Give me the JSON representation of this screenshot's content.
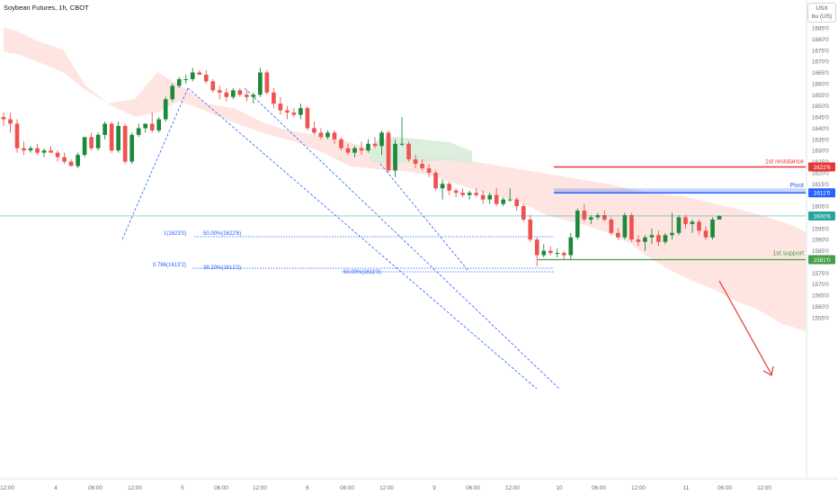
{
  "header": {
    "title": "Soybean Futures, 1h, CBOT",
    "currency_line1": "USX",
    "currency_line2": "bu (US)"
  },
  "colors": {
    "up": "#26a69a",
    "up_dark": "#1b8a3b",
    "down": "#ef5350",
    "cloud_bear": "#fddcd8",
    "cloud_bull": "#d8ecd9",
    "fib": "#2962ff",
    "resistance": "#e53935",
    "pivot": "#2962ff",
    "support": "#43a047",
    "current": "#26a69a"
  },
  "chart_data": {
    "type": "candlestick",
    "y_axis": {
      "range": [
        15520,
        16880
      ],
      "tick_labels": [
        "1685'0",
        "1680'0",
        "1675'0",
        "1670'0",
        "1665'0",
        "1660'0",
        "1655'0",
        "1650'0",
        "1645'0",
        "1640'0",
        "1635'0",
        "1630'0",
        "1625'0",
        "1620'0",
        "1615'0",
        "1610'0",
        "1605'0",
        "1600'0",
        "1595'0",
        "1590'0",
        "1585'0",
        "1580'0",
        "1575'0",
        "1570'0",
        "1565'0",
        "1560'0",
        "1555'0"
      ]
    },
    "x_axis": {
      "tick_labels": [
        "12:00",
        "4",
        "06:00",
        "12:00",
        "5",
        "06:00",
        "12:00",
        "6",
        "06:00",
        "12:00",
        "9",
        "06:00",
        "12:00",
        "10",
        "06:00",
        "12:00",
        "11",
        "06:00",
        "12:00"
      ]
    },
    "price_labels": {
      "resistance": "1622'6",
      "pivot": "1611'0",
      "current": "1600'6",
      "support": "1581'0"
    },
    "price_levels": {
      "resistance": 16226,
      "pivot_top": 16130,
      "pivot": 16110,
      "current": 16006,
      "support": 15810
    },
    "annotations": {
      "resistance": "1st resistance",
      "pivot": "Pivot",
      "support": "1st support"
    },
    "fib_labels": {
      "top_left": "1(1623'0)",
      "top_mid": "50.00%(1622'6)",
      "mid_left": "0.786(1613'2)",
      "mid_mid": "38.20%(1612'2)",
      "mid_right": "50.00%(1611'0)"
    },
    "candles": [
      [
        16450,
        16470,
        16410,
        16440
      ],
      [
        16440,
        16470,
        16380,
        16420
      ],
      [
        16420,
        16440,
        16290,
        16310
      ],
      [
        16310,
        16340,
        16280,
        16300
      ],
      [
        16300,
        16320,
        16290,
        16310
      ],
      [
        16310,
        16330,
        16280,
        16290
      ],
      [
        16290,
        16310,
        16270,
        16300
      ],
      [
        16300,
        16320,
        16290,
        16290
      ],
      [
        16290,
        16300,
        16250,
        16270
      ],
      [
        16270,
        16290,
        16240,
        16250
      ],
      [
        16250,
        16260,
        16230,
        16230
      ],
      [
        16230,
        16290,
        16220,
        16280
      ],
      [
        16280,
        16360,
        16270,
        16360
      ],
      [
        16360,
        16380,
        16300,
        16310
      ],
      [
        16310,
        16380,
        16300,
        16370
      ],
      [
        16370,
        16430,
        16350,
        16420
      ],
      [
        16420,
        16430,
        16290,
        16300
      ],
      [
        16300,
        16430,
        16290,
        16410
      ],
      [
        16410,
        16420,
        16240,
        16250
      ],
      [
        16250,
        16380,
        16240,
        16370
      ],
      [
        16370,
        16420,
        16360,
        16400
      ],
      [
        16400,
        16420,
        16380,
        16420
      ],
      [
        16420,
        16470,
        16380,
        16390
      ],
      [
        16390,
        16450,
        16380,
        16440
      ],
      [
        16440,
        16540,
        16430,
        16530
      ],
      [
        16530,
        16600,
        16520,
        16590
      ],
      [
        16590,
        16630,
        16580,
        16620
      ],
      [
        16620,
        16640,
        16600,
        16620
      ],
      [
        16620,
        16670,
        16610,
        16650
      ],
      [
        16650,
        16660,
        16640,
        16640
      ],
      [
        16640,
        16660,
        16600,
        16610
      ],
      [
        16610,
        16620,
        16560,
        16570
      ],
      [
        16570,
        16590,
        16530,
        16560
      ],
      [
        16560,
        16580,
        16520,
        16540
      ],
      [
        16540,
        16580,
        16530,
        16570
      ],
      [
        16570,
        16580,
        16540,
        16550
      ],
      [
        16550,
        16570,
        16520,
        16540
      ],
      [
        16540,
        16560,
        16510,
        16550
      ],
      [
        16550,
        16670,
        16540,
        16650
      ],
      [
        16650,
        16660,
        16550,
        16560
      ],
      [
        16560,
        16580,
        16490,
        16510
      ],
      [
        16510,
        16540,
        16460,
        16480
      ],
      [
        16480,
        16500,
        16440,
        16470
      ],
      [
        16470,
        16490,
        16450,
        16460
      ],
      [
        16460,
        16510,
        16440,
        16490
      ],
      [
        16490,
        16500,
        16390,
        16400
      ],
      [
        16400,
        16430,
        16370,
        16380
      ],
      [
        16380,
        16400,
        16350,
        16360
      ],
      [
        16360,
        16390,
        16350,
        16380
      ],
      [
        16380,
        16390,
        16330,
        16350
      ],
      [
        16350,
        16360,
        16300,
        16310
      ],
      [
        16310,
        16330,
        16280,
        16290
      ],
      [
        16290,
        16320,
        16270,
        16310
      ],
      [
        16310,
        16340,
        16280,
        16300
      ],
      [
        16300,
        16350,
        16290,
        16330
      ],
      [
        16330,
        16360,
        16310,
        16320
      ],
      [
        16320,
        16390,
        16280,
        16380
      ],
      [
        16380,
        16390,
        16200,
        16210
      ],
      [
        16210,
        16350,
        16180,
        16330
      ],
      [
        16330,
        16450,
        16320,
        16330
      ],
      [
        16330,
        16340,
        16250,
        16260
      ],
      [
        16260,
        16280,
        16220,
        16240
      ],
      [
        16240,
        16260,
        16210,
        16220
      ],
      [
        16220,
        16240,
        16180,
        16200
      ],
      [
        16200,
        16210,
        16120,
        16130
      ],
      [
        16130,
        16170,
        16080,
        16150
      ],
      [
        16150,
        16160,
        16100,
        16120
      ],
      [
        16120,
        16130,
        16090,
        16110
      ],
      [
        16110,
        16130,
        16090,
        16100
      ],
      [
        16100,
        16120,
        16080,
        16110
      ],
      [
        16110,
        16130,
        16090,
        16100
      ],
      [
        16100,
        16120,
        16060,
        16080
      ],
      [
        16080,
        16110,
        16060,
        16100
      ],
      [
        16100,
        16130,
        16050,
        16060
      ],
      [
        16060,
        16090,
        16050,
        16080
      ],
      [
        16080,
        16130,
        16070,
        16080
      ],
      [
        16080,
        16090,
        16030,
        16050
      ],
      [
        16050,
        16060,
        15980,
        15990
      ],
      [
        15990,
        16010,
        15890,
        15900
      ],
      [
        15900,
        15910,
        15780,
        15830
      ],
      [
        15830,
        15880,
        15820,
        15850
      ],
      [
        15850,
        15870,
        15830,
        15840
      ],
      [
        15840,
        15860,
        15820,
        15840
      ],
      [
        15840,
        15850,
        15810,
        15830
      ],
      [
        15830,
        15930,
        15810,
        15910
      ],
      [
        15910,
        16040,
        15900,
        16030
      ],
      [
        16030,
        16060,
        15980,
        15990
      ],
      [
        15990,
        16010,
        15970,
        16000
      ],
      [
        16000,
        16020,
        15990,
        16010
      ],
      [
        16010,
        16030,
        15980,
        15990
      ],
      [
        15990,
        16000,
        15920,
        15930
      ],
      [
        15930,
        15950,
        15900,
        15910
      ],
      [
        15910,
        16020,
        15900,
        16010
      ],
      [
        16010,
        16020,
        15890,
        15900
      ],
      [
        15900,
        15920,
        15870,
        15890
      ],
      [
        15890,
        15920,
        15850,
        15910
      ],
      [
        15910,
        15950,
        15880,
        15920
      ],
      [
        15920,
        15940,
        15870,
        15890
      ],
      [
        15890,
        15930,
        15880,
        15920
      ],
      [
        15920,
        16020,
        15900,
        15930
      ],
      [
        15930,
        16010,
        15920,
        16000
      ],
      [
        16000,
        16010,
        15950,
        15970
      ],
      [
        15970,
        15990,
        15930,
        15980
      ],
      [
        15980,
        15990,
        15920,
        15940
      ],
      [
        15940,
        15960,
        15900,
        15910
      ],
      [
        15910,
        16000,
        15900,
        15990
      ],
      [
        15990,
        16010,
        15990,
        16006
      ]
    ]
  }
}
